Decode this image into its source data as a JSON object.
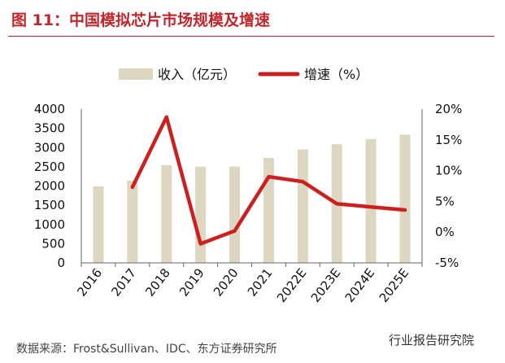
{
  "header": {
    "title": "图 11：中国模拟芯片市场规模及增速"
  },
  "footer": {
    "source": "数据来源：Frost&Sullivan、IDC、东方证券研究所",
    "watermark": "行业报告研究院"
  },
  "colors": {
    "accent": "#c0272d",
    "bar": "#ddd6c1",
    "line": "#cc1f1f"
  },
  "chart_data": {
    "type": "bar",
    "categories": [
      "2016",
      "2017",
      "2018",
      "2019",
      "2020",
      "2021",
      "2022E",
      "2023E",
      "2024E",
      "2025E"
    ],
    "series": [
      {
        "name": "收入（亿元）",
        "type": "bar",
        "axis": "left",
        "values": [
          1990,
          2140,
          2540,
          2500,
          2505,
          2730,
          2950,
          3085,
          3220,
          3335
        ]
      },
      {
        "name": "增速（%）",
        "type": "line",
        "axis": "right",
        "values": [
          null,
          7.3,
          18.7,
          -1.9,
          0.2,
          9.0,
          8.2,
          4.6,
          4.1,
          3.6
        ]
      }
    ],
    "ylim": [
      0,
      4000
    ],
    "yticks": [
      "0",
      "500",
      "1000",
      "1500",
      "2000",
      "2500",
      "3000",
      "3500",
      "4000"
    ],
    "y2lim": [
      -5,
      20
    ],
    "y2ticks": [
      "-5%",
      "0%",
      "5%",
      "10%",
      "15%",
      "20%"
    ],
    "legend_position": "top-center",
    "grid": false
  }
}
